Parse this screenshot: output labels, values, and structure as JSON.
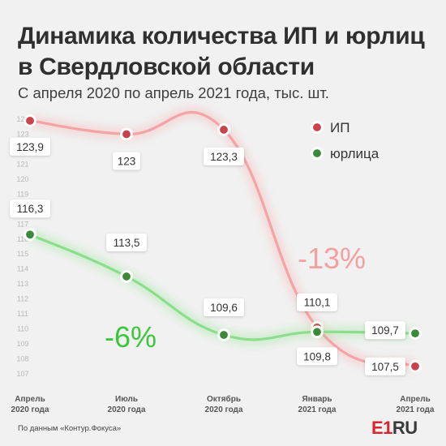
{
  "title": "Динамика количества ИП и юрлиц в Свердловской области",
  "subtitle": "С апреля 2020 по апрель 2021 года, тыс. шт.",
  "source": "По данным «Контур.Фокуса»",
  "logo": {
    "prefix": "E1",
    "suffix": "RU"
  },
  "colors": {
    "background": "#f1f1f1",
    "ip_line": "#f5a3a3",
    "ip_marker": "#c9434b",
    "legal_line": "#8ae08a",
    "legal_marker": "#3a8a3a",
    "ip_annotation": "#f3a0a0",
    "legal_annotation": "#3cc63c"
  },
  "chart_data": {
    "type": "line",
    "title": "Динамика количества ИП и юрлиц в Свердловской области",
    "subtitle": "С апреля 2020 по апрель 2021 года, тыс. шт.",
    "xlabel": "",
    "ylabel": "",
    "ylim": [
      107,
      124
    ],
    "yticks": [
      107,
      108,
      109,
      110,
      111,
      112,
      113,
      114,
      115,
      116,
      117,
      118,
      119,
      120,
      121,
      122,
      123,
      124
    ],
    "grid": false,
    "legend": "top-right",
    "x": [
      "Апрель 2020 года",
      "Июль 2020 года",
      "Октябрь 2020 года",
      "Январь 2021 года",
      "Апрель 2021 года"
    ],
    "x_lines": [
      [
        "Апрель",
        "2020 года"
      ],
      [
        "Июль",
        "2020 года"
      ],
      [
        "Октябрь",
        "2020 года"
      ],
      [
        "Январь",
        "2021 года"
      ],
      [
        "Апрель",
        "2021 года"
      ]
    ],
    "series": [
      {
        "name": "ИП",
        "values": [
          123.9,
          123,
          123.3,
          110.1,
          107.5
        ],
        "labels": [
          "123,9",
          "123",
          "123,3",
          "110,1",
          "107,5"
        ]
      },
      {
        "name": "юрлица",
        "values": [
          116.3,
          113.5,
          109.6,
          109.8,
          109.7
        ],
        "labels": [
          "116,3",
          "113,5",
          "109,6",
          "109,8",
          "109,7"
        ]
      }
    ],
    "annotations": [
      {
        "text": "-13%",
        "series": "ИП"
      },
      {
        "text": "-6%",
        "series": "юрлица"
      }
    ]
  }
}
